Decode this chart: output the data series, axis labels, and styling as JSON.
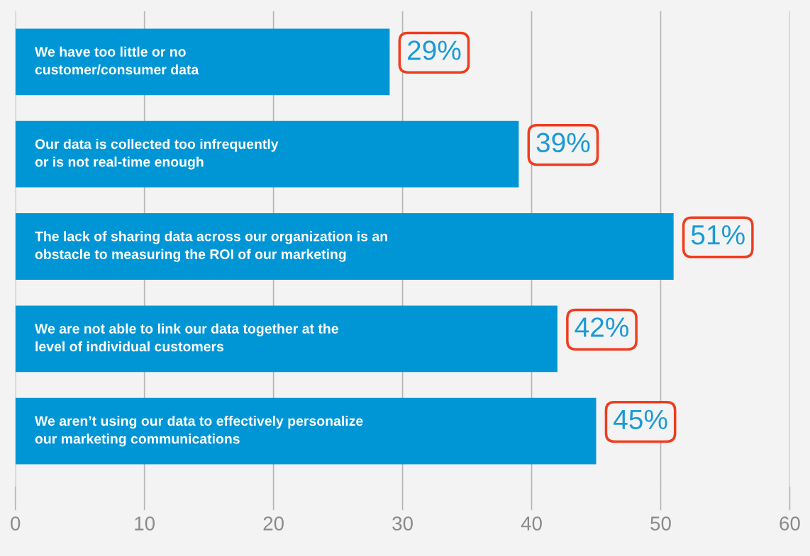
{
  "chart_data": {
    "type": "bar",
    "orientation": "horizontal",
    "categories": [
      "We have too little or no\ncustomer/consumer data",
      "Our data is collected too infrequently\nor is not real-time enough",
      "The lack of sharing data across our organization is an\nobstacle to measuring the ROI of our marketing",
      "We are not able to link our data together at the\nlevel of individual customers",
      "We aren’t using our data to effectively personalize\nour marketing communications"
    ],
    "values": [
      29,
      39,
      51,
      42,
      45
    ],
    "value_labels": [
      "29%",
      "39%",
      "51%",
      "42%",
      "45%"
    ],
    "color": "#0096d6",
    "xlim": [
      0,
      60
    ],
    "xticks": [
      0,
      10,
      20,
      30,
      40,
      50,
      60
    ],
    "grid": "x"
  }
}
